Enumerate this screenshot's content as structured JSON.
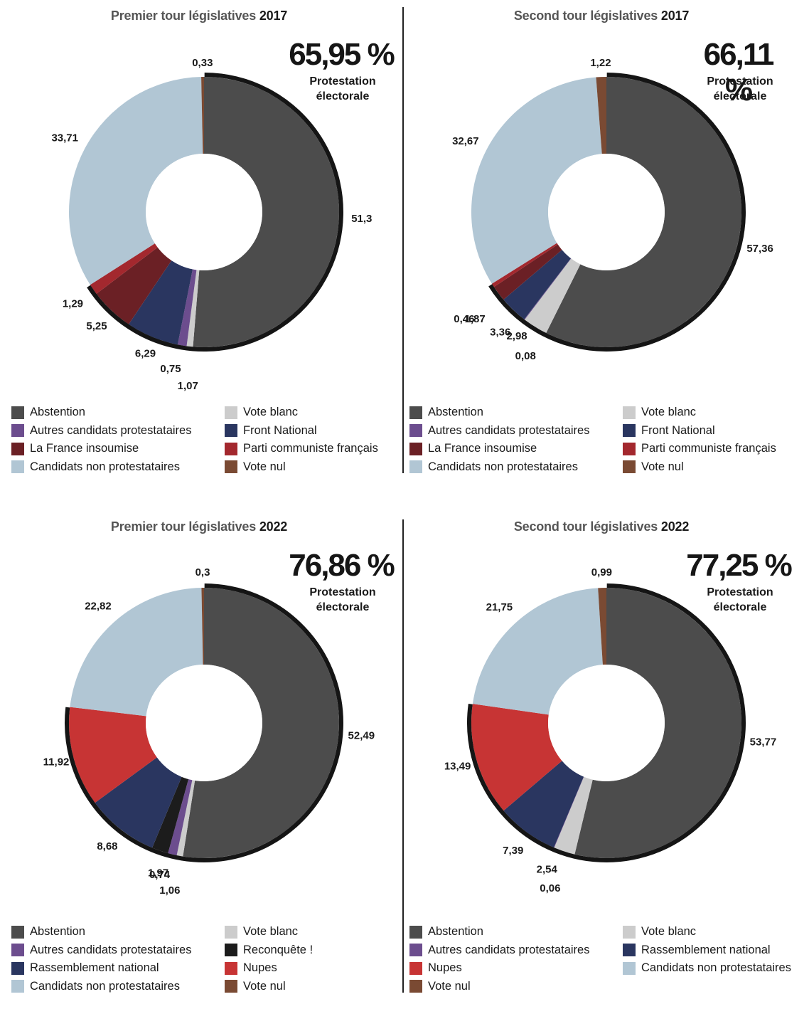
{
  "chart_data": [
    {
      "type": "pie",
      "title_prefix": "Premier tour législatives",
      "title_year": "2017",
      "headline_value": "65,95 %",
      "headline_label": [
        "Protestation",
        "électorale"
      ],
      "slices": [
        {
          "name": "Abstention",
          "value": 51.3,
          "label": "51,3",
          "color": "#4c4c4c",
          "protest": true
        },
        {
          "name": "Vote blanc",
          "value": 0.75,
          "label": "0,75",
          "color": "#cccccc",
          "protest": true
        },
        {
          "name": "Autres candidats protestataires",
          "value": 1.07,
          "label": "1,07",
          "color": "#6c4d8e",
          "protest": true
        },
        {
          "name": "Front National",
          "value": 6.29,
          "label": "6,29",
          "color": "#2a3660",
          "protest": true
        },
        {
          "name": "La France insoumise",
          "value": 5.25,
          "label": "5,25",
          "color": "#6b2025",
          "protest": true
        },
        {
          "name": "Parti communiste français",
          "value": 1.29,
          "label": "1,29",
          "color": "#a3282e",
          "protest": true
        },
        {
          "name": "Candidats non protestataires",
          "value": 33.71,
          "label": "33,71",
          "color": "#b1c6d4",
          "protest": false
        },
        {
          "name": "Vote nul",
          "value": 0.33,
          "label": "0,33",
          "color": "#7a4a33",
          "protest": false
        }
      ],
      "legend": [
        {
          "label": "Abstention",
          "color": "#4c4c4c"
        },
        {
          "label": "Autres candidats protestataires",
          "color": "#6c4d8e"
        },
        {
          "label": "La France insoumise",
          "color": "#6b2025"
        },
        {
          "label": "Candidats non protestataires",
          "color": "#b1c6d4"
        },
        {
          "label": "Vote blanc",
          "color": "#cccccc"
        },
        {
          "label": "Front National",
          "color": "#2a3660"
        },
        {
          "label": "Parti communiste français",
          "color": "#a3282e"
        },
        {
          "label": "Vote nul",
          "color": "#7a4a33"
        }
      ]
    },
    {
      "type": "pie",
      "title_prefix": "Second tour législatives",
      "title_year": "2017",
      "headline_value": "66,11 %",
      "headline_label": [
        "Protestation",
        "électorale"
      ],
      "slices": [
        {
          "name": "Abstention",
          "value": 57.36,
          "label": "57,36",
          "color": "#4c4c4c",
          "protest": true
        },
        {
          "name": "Vote blanc",
          "value": 2.98,
          "label": "2,98",
          "color": "#cccccc",
          "protest": true
        },
        {
          "name": "Autres candidats protestataires",
          "value": 0.08,
          "label": "0,08",
          "color": "#6c4d8e",
          "protest": true
        },
        {
          "name": "Front National",
          "value": 3.36,
          "label": "3,36",
          "color": "#2a3660",
          "protest": true
        },
        {
          "name": "La France insoumise",
          "value": 1.87,
          "label": "1,87",
          "color": "#6b2025",
          "protest": true
        },
        {
          "name": "Parti communiste français",
          "value": 0.46,
          "label": "0,46",
          "color": "#a3282e",
          "protest": true
        },
        {
          "name": "Candidats non protestataires",
          "value": 32.67,
          "label": "32,67",
          "color": "#b1c6d4",
          "protest": false
        },
        {
          "name": "Vote nul",
          "value": 1.22,
          "label": "1,22",
          "color": "#7a4a33",
          "protest": false
        }
      ],
      "legend": [
        {
          "label": "Abstention",
          "color": "#4c4c4c"
        },
        {
          "label": "Autres candidats protestataires",
          "color": "#6c4d8e"
        },
        {
          "label": "La France insoumise",
          "color": "#6b2025"
        },
        {
          "label": "Candidats non protestataires",
          "color": "#b1c6d4"
        },
        {
          "label": "Vote blanc",
          "color": "#cccccc"
        },
        {
          "label": "Front National",
          "color": "#2a3660"
        },
        {
          "label": "Parti communiste français",
          "color": "#a3282e"
        },
        {
          "label": "Vote nul",
          "color": "#7a4a33"
        }
      ]
    },
    {
      "type": "pie",
      "title_prefix": "Premier tour législatives",
      "title_year": "2022",
      "headline_value": "76,86 %",
      "headline_label": [
        "Protestation",
        "électorale"
      ],
      "slices": [
        {
          "name": "Abstention",
          "value": 52.49,
          "label": "52,49",
          "color": "#4c4c4c",
          "protest": true
        },
        {
          "name": "Vote blanc",
          "value": 0.74,
          "label": "0,74",
          "color": "#cccccc",
          "protest": true
        },
        {
          "name": "Autres candidats protestataires",
          "value": 1.06,
          "label": "1,06",
          "color": "#6c4d8e",
          "protest": true
        },
        {
          "name": "Reconquête !",
          "value": 1.97,
          "label": "1,97",
          "color": "#1c1c1c",
          "protest": true
        },
        {
          "name": "Rassemblement national",
          "value": 8.68,
          "label": "8,68",
          "color": "#2a3660",
          "protest": true
        },
        {
          "name": "Nupes",
          "value": 11.92,
          "label": "11,92",
          "color": "#c73434",
          "protest": true
        },
        {
          "name": "Candidats non protestataires",
          "value": 22.82,
          "label": "22,82",
          "color": "#b1c6d4",
          "protest": false
        },
        {
          "name": "Vote nul",
          "value": 0.3,
          "label": "0,3",
          "color": "#7a4a33",
          "protest": false
        }
      ],
      "legend": [
        {
          "label": "Abstention",
          "color": "#4c4c4c"
        },
        {
          "label": "Autres candidats protestataires",
          "color": "#6c4d8e"
        },
        {
          "label": "Rassemblement national",
          "color": "#2a3660"
        },
        {
          "label": "Candidats non protestataires",
          "color": "#b1c6d4"
        },
        {
          "label": "Vote blanc",
          "color": "#cccccc"
        },
        {
          "label": "Reconquête !",
          "color": "#1c1c1c"
        },
        {
          "label": "Nupes",
          "color": "#c73434"
        },
        {
          "label": "Vote nul",
          "color": "#7a4a33"
        }
      ]
    },
    {
      "type": "pie",
      "title_prefix": "Second tour législatives",
      "title_year": "2022",
      "headline_value": "77,25 %",
      "headline_label": [
        "Protestation",
        "électorale"
      ],
      "slices": [
        {
          "name": "Abstention",
          "value": 53.77,
          "label": "53,77",
          "color": "#4c4c4c",
          "protest": true
        },
        {
          "name": "Vote blanc",
          "value": 2.54,
          "label": "2,54",
          "color": "#cccccc",
          "protest": true
        },
        {
          "name": "Autres candidats protestataires",
          "value": 0.06,
          "label": "0,06",
          "color": "#6c4d8e",
          "protest": true
        },
        {
          "name": "Rassemblement national",
          "value": 7.39,
          "label": "7,39",
          "color": "#2a3660",
          "protest": true
        },
        {
          "name": "Nupes",
          "value": 13.49,
          "label": "13,49",
          "color": "#c73434",
          "protest": true
        },
        {
          "name": "Candidats non protestataires",
          "value": 21.75,
          "label": "21,75",
          "color": "#b1c6d4",
          "protest": false
        },
        {
          "name": "Vote nul",
          "value": 0.99,
          "label": "0,99",
          "color": "#7a4a33",
          "protest": false
        }
      ],
      "legend": [
        {
          "label": "Abstention",
          "color": "#4c4c4c"
        },
        {
          "label": "Autres candidats protestataires",
          "color": "#6c4d8e"
        },
        {
          "label": "Nupes",
          "color": "#c73434"
        },
        {
          "label": "Vote nul",
          "color": "#7a4a33"
        },
        {
          "label": "Vote blanc",
          "color": "#cccccc"
        },
        {
          "label": "Rassemblement national",
          "color": "#2a3660"
        },
        {
          "label": "Candidats non protestataires",
          "color": "#b1c6d4"
        }
      ]
    }
  ]
}
